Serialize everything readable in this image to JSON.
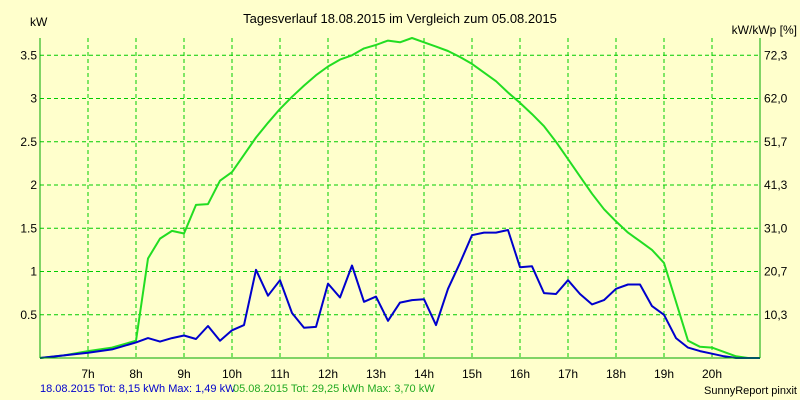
{
  "chart_data": {
    "type": "line",
    "title": "Tagesverlauf 18.08.2015 im Vergleich zum 05.08.2015",
    "ylabel_left": "kW",
    "ylabel_right": "kW/kWp [%]",
    "xlim": [
      6,
      21
    ],
    "ylim": [
      0,
      3.7
    ],
    "x_ticks": [
      7,
      8,
      9,
      10,
      11,
      12,
      13,
      14,
      15,
      16,
      17,
      18,
      19,
      20
    ],
    "x_tick_labels": [
      "7h",
      "8h",
      "9h",
      "10h",
      "11h",
      "12h",
      "13h",
      "14h",
      "15h",
      "16h",
      "17h",
      "18h",
      "19h",
      "20h"
    ],
    "y_ticks_left": [
      0.5,
      1,
      1.5,
      2,
      2.5,
      3,
      3.5
    ],
    "y_tick_labels_left": [
      "0.5",
      "1",
      "1.5",
      "2",
      "2.5",
      "3",
      "3.5"
    ],
    "y_ticks_right_values": [
      0.5,
      1,
      1.5,
      2,
      2.5,
      3,
      3.5
    ],
    "y_tick_labels_right": [
      "10,3",
      "20,7",
      "31,0",
      "41,3",
      "51,7",
      "62,0",
      "72,3"
    ],
    "grid": true,
    "series": [
      {
        "name": "05.08.2015",
        "color": "#22dd22",
        "x": [
          6.0,
          6.5,
          7.0,
          7.5,
          8.0,
          8.25,
          8.5,
          8.75,
          9.0,
          9.25,
          9.5,
          9.75,
          10.0,
          10.25,
          10.5,
          10.75,
          11.0,
          11.25,
          11.5,
          11.75,
          12.0,
          12.25,
          12.5,
          12.75,
          13.0,
          13.25,
          13.5,
          13.75,
          14.0,
          14.25,
          14.5,
          14.75,
          15.0,
          15.25,
          15.5,
          15.75,
          16.0,
          16.25,
          16.5,
          16.75,
          17.0,
          17.25,
          17.5,
          17.75,
          18.0,
          18.25,
          18.5,
          18.75,
          19.0,
          19.25,
          19.5,
          19.75,
          20.0,
          20.25,
          20.5,
          20.75,
          21.0
        ],
        "y": [
          0.0,
          0.03,
          0.08,
          0.12,
          0.2,
          1.15,
          1.38,
          1.47,
          1.44,
          1.77,
          1.78,
          2.05,
          2.15,
          2.35,
          2.55,
          2.72,
          2.88,
          3.02,
          3.15,
          3.27,
          3.37,
          3.45,
          3.5,
          3.58,
          3.62,
          3.67,
          3.65,
          3.7,
          3.65,
          3.6,
          3.55,
          3.48,
          3.4,
          3.3,
          3.2,
          3.07,
          2.95,
          2.82,
          2.68,
          2.5,
          2.3,
          2.1,
          1.9,
          1.72,
          1.58,
          1.45,
          1.35,
          1.25,
          1.1,
          0.65,
          0.2,
          0.13,
          0.12,
          0.07,
          0.02,
          0.0,
          0.0
        ]
      },
      {
        "name": "18.08.2015",
        "color": "#0000cc",
        "x": [
          6.0,
          6.5,
          7.0,
          7.5,
          8.0,
          8.25,
          8.5,
          8.75,
          9.0,
          9.25,
          9.5,
          9.75,
          10.0,
          10.25,
          10.5,
          10.75,
          11.0,
          11.25,
          11.5,
          11.75,
          12.0,
          12.25,
          12.5,
          12.75,
          13.0,
          13.25,
          13.5,
          13.75,
          14.0,
          14.25,
          14.5,
          14.75,
          15.0,
          15.25,
          15.5,
          15.75,
          16.0,
          16.25,
          16.5,
          16.75,
          17.0,
          17.25,
          17.5,
          17.75,
          18.0,
          18.25,
          18.5,
          18.75,
          19.0,
          19.25,
          19.5,
          19.75,
          20.0,
          20.25,
          20.5,
          20.75,
          21.0
        ],
        "y": [
          0.0,
          0.03,
          0.06,
          0.1,
          0.18,
          0.23,
          0.19,
          0.23,
          0.26,
          0.22,
          0.37,
          0.2,
          0.32,
          0.38,
          1.02,
          0.72,
          0.9,
          0.52,
          0.35,
          0.36,
          0.86,
          0.7,
          1.07,
          0.65,
          0.71,
          0.43,
          0.64,
          0.67,
          0.68,
          0.38,
          0.8,
          1.1,
          1.42,
          1.45,
          1.45,
          1.48,
          1.05,
          1.06,
          0.75,
          0.74,
          0.9,
          0.74,
          0.62,
          0.67,
          0.8,
          0.85,
          0.85,
          0.6,
          0.5,
          0.23,
          0.12,
          0.08,
          0.05,
          0.02,
          0.0,
          0.0,
          0.0
        ]
      }
    ]
  },
  "footer": {
    "stats_blue": "18.08.2015 Tot: 8,15 kWh Max: 1,49 kW",
    "stats_green": "05.08.2015 Tot: 29,25 kWh Max: 3,70 kW",
    "credit": "SunnyReport pinxit"
  }
}
